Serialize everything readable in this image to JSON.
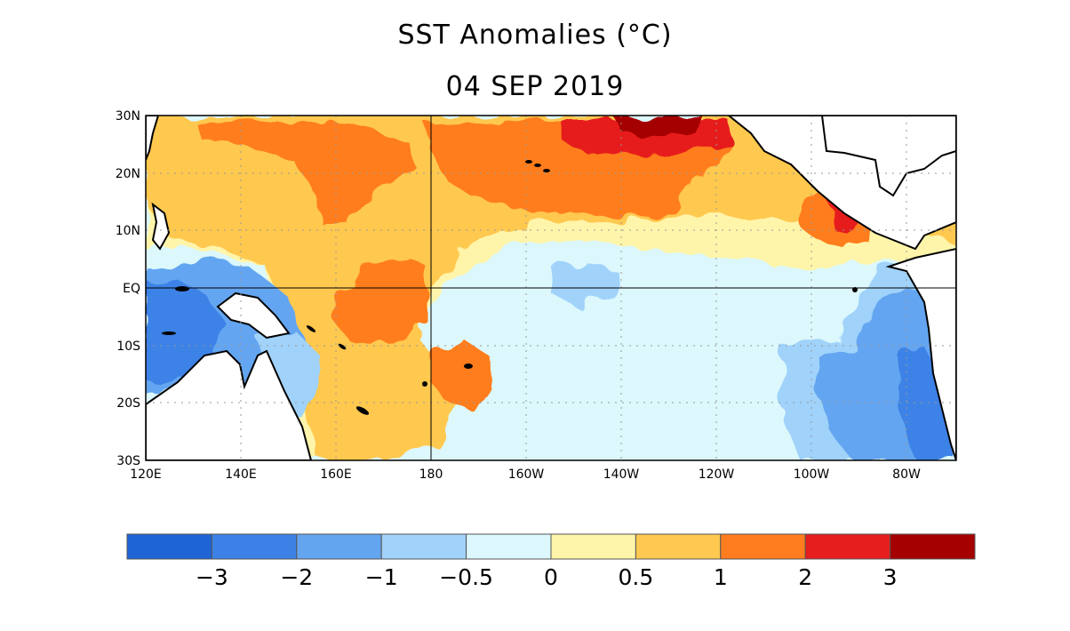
{
  "title": "SST Anomalies (°C)",
  "subtitle": "04 SEP 2019",
  "lat_labels": [
    "30N",
    "20N",
    "10N",
    "EQ",
    "10S",
    "20S",
    "30S"
  ],
  "lon_labels": [
    "120E",
    "140E",
    "160E",
    "180",
    "160W",
    "140W",
    "120W",
    "100W",
    "80W"
  ],
  "colorbar": {
    "colors": [
      "#1e64d7",
      "#3c82e6",
      "#64a5f0",
      "#a0d2fa",
      "#dcf8fc",
      "#fff5aa",
      "#ffc850",
      "#ff7d1e",
      "#e61e1e",
      "#a50000"
    ],
    "tick_labels": [
      "−3",
      "−2",
      "−1",
      "−0.5",
      "0",
      "0.5",
      "1",
      "2",
      "3"
    ]
  }
}
